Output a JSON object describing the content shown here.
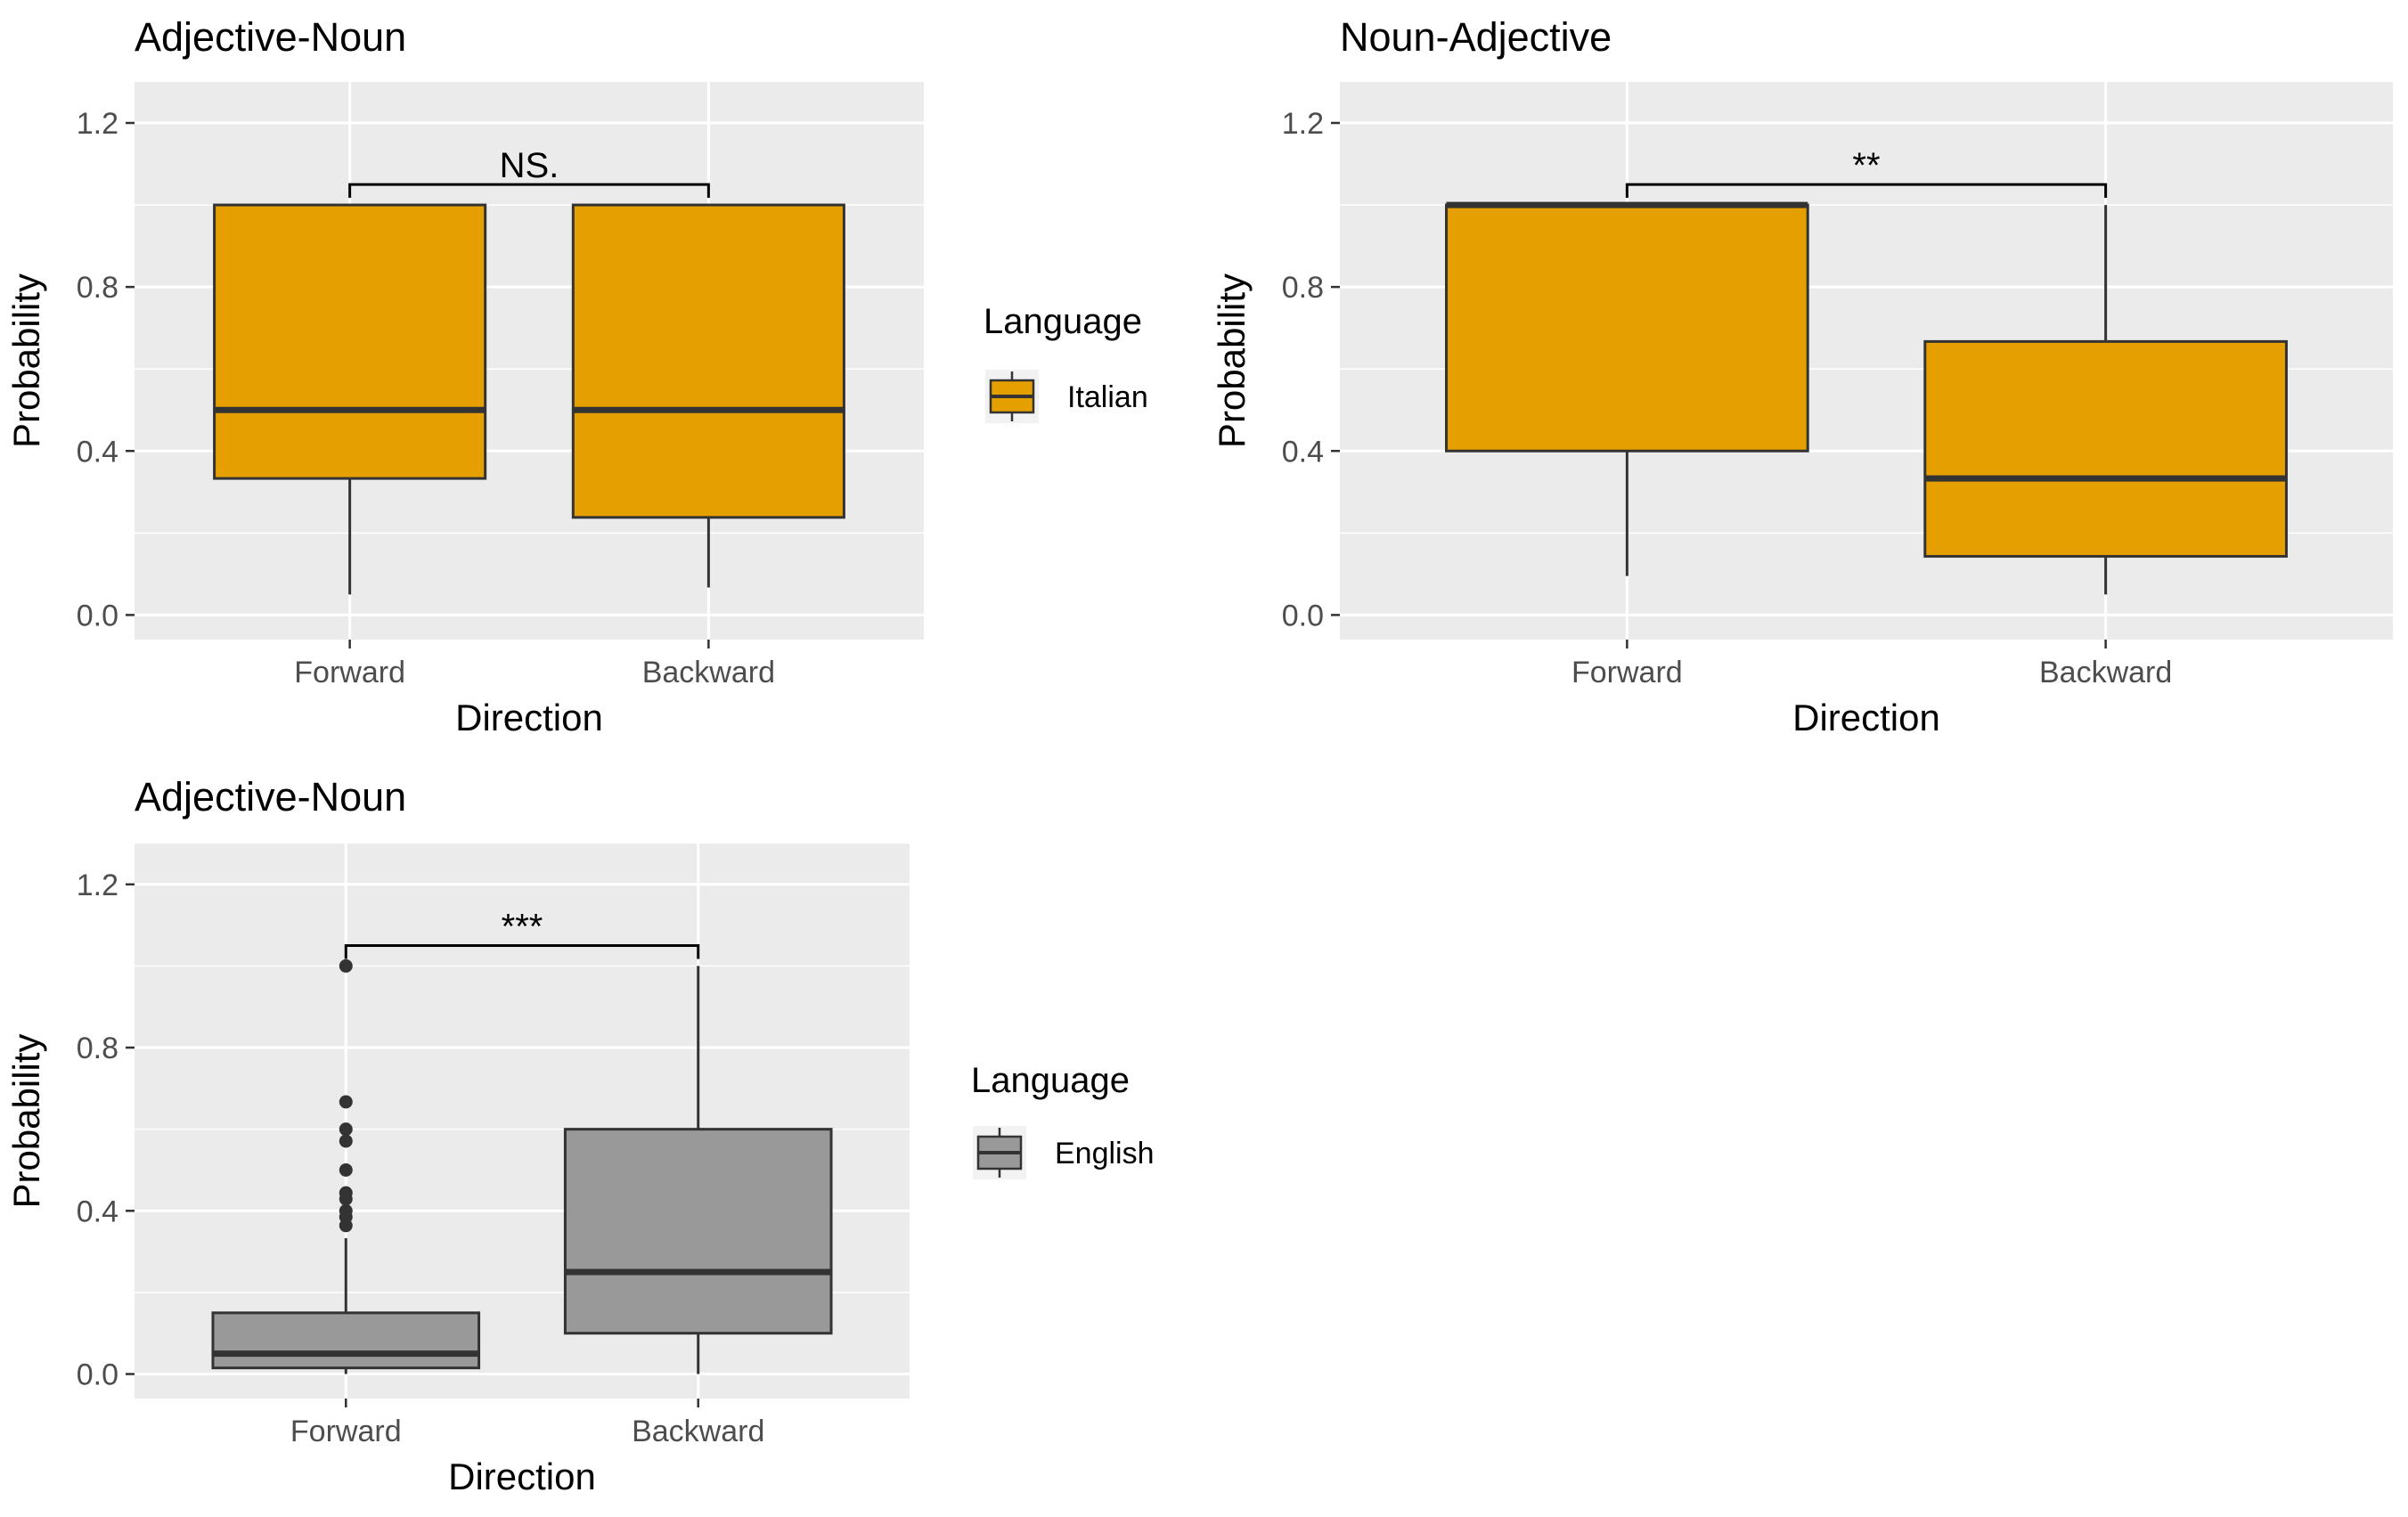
{
  "chart_data": [
    {
      "type": "box",
      "title": "Adjective-Noun",
      "xlabel": "Direction",
      "ylabel": "Probability",
      "categories": [
        "Forward",
        "Backward"
      ],
      "ylim": [
        -0.06,
        1.3
      ],
      "yticks": [
        0.0,
        0.4,
        0.8,
        1.2
      ],
      "ytick_labels": [
        "0.0",
        "0.4",
        "0.8",
        "1.2"
      ],
      "grid": true,
      "fill_color": "#E69F00",
      "legend": {
        "title": "Language",
        "label": "Italian",
        "placement": "right"
      },
      "boxes": [
        {
          "category": "Forward",
          "q1": 0.333,
          "median": 0.5,
          "q3": 1.0,
          "whisker_low": 0.05,
          "whisker_high": 1.0,
          "outliers": []
        },
        {
          "category": "Backward",
          "q1": 0.238,
          "median": 0.5,
          "q3": 1.0,
          "whisker_low": 0.067,
          "whisker_high": 1.0,
          "outliers": []
        }
      ],
      "significance": {
        "label": "NS.",
        "from": "Forward",
        "to": "Backward",
        "y": 1.05
      }
    },
    {
      "type": "box",
      "title": "Noun-Adjective",
      "xlabel": "Direction",
      "ylabel": "Probability",
      "categories": [
        "Forward",
        "Backward"
      ],
      "ylim": [
        -0.06,
        1.3
      ],
      "yticks": [
        0.0,
        0.4,
        0.8,
        1.2
      ],
      "ytick_labels": [
        "0.0",
        "0.4",
        "0.8",
        "1.2"
      ],
      "grid": true,
      "fill_color": "#E69F00",
      "legend": null,
      "boxes": [
        {
          "category": "Forward",
          "q1": 0.4,
          "median": 1.0,
          "q3": 1.0,
          "whisker_low": 0.095,
          "whisker_high": 1.0,
          "outliers": []
        },
        {
          "category": "Backward",
          "q1": 0.143,
          "median": 0.333,
          "q3": 0.667,
          "whisker_low": 0.05,
          "whisker_high": 1.0,
          "outliers": []
        }
      ],
      "significance": {
        "label": "**",
        "from": "Forward",
        "to": "Backward",
        "y": 1.05
      }
    },
    {
      "type": "box",
      "title": "Adjective-Noun",
      "xlabel": "Direction",
      "ylabel": "Probability",
      "categories": [
        "Forward",
        "Backward"
      ],
      "ylim": [
        -0.06,
        1.3
      ],
      "yticks": [
        0.0,
        0.4,
        0.8,
        1.2
      ],
      "ytick_labels": [
        "0.0",
        "0.4",
        "0.8",
        "1.2"
      ],
      "grid": true,
      "fill_color": "#999999",
      "legend": {
        "title": "Language",
        "label": "English",
        "placement": "right"
      },
      "boxes": [
        {
          "category": "Forward",
          "q1": 0.015,
          "median": 0.05,
          "q3": 0.15,
          "whisker_low": 0.0,
          "whisker_high": 0.333,
          "outliers": [
            0.364,
            0.385,
            0.4,
            0.429,
            0.444,
            0.5,
            0.571,
            0.6,
            0.667,
            1.0
          ]
        },
        {
          "category": "Backward",
          "q1": 0.1,
          "median": 0.25,
          "q3": 0.6,
          "whisker_low": 0.0,
          "whisker_high": 1.0,
          "outliers": []
        }
      ],
      "significance": {
        "label": "***",
        "from": "Forward",
        "to": "Backward",
        "y": 1.05
      }
    }
  ]
}
